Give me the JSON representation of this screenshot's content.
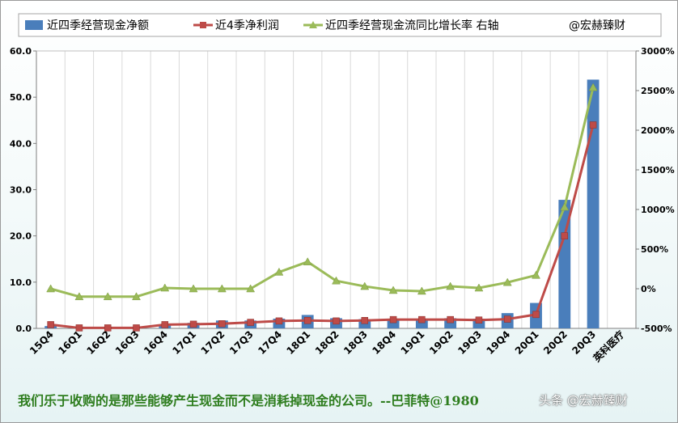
{
  "chart_data": {
    "type": "bar+line",
    "categories": [
      "15Q4",
      "16Q1",
      "16Q2",
      "16Q3",
      "16Q4",
      "17Q1",
      "17Q2",
      "17Q3",
      "17Q4",
      "18Q1",
      "18Q2",
      "18Q3",
      "18Q4",
      "19Q1",
      "19Q2",
      "19Q3",
      "19Q4",
      "20Q1",
      "20Q2",
      "20Q3",
      "英科医疗"
    ],
    "series": [
      {
        "name": "近四季经营现金净额",
        "kind": "bar",
        "axis": "left",
        "color": "#4a7ebb",
        "values": [
          0.5,
          0.3,
          0.3,
          0.3,
          0.8,
          1.2,
          1.7,
          1.7,
          2.1,
          2.9,
          2.2,
          2.0,
          2.1,
          2.1,
          2.2,
          2.1,
          3.3,
          5.5,
          27.8,
          53.8,
          null
        ]
      },
      {
        "name": "近4季净利润",
        "kind": "line",
        "axis": "left",
        "color": "#be4b48",
        "marker": "square",
        "values": [
          0.8,
          0.1,
          0.1,
          0.1,
          0.8,
          0.9,
          1.0,
          1.3,
          1.6,
          1.7,
          1.6,
          1.7,
          1.9,
          1.9,
          1.9,
          1.8,
          2.0,
          3.0,
          20.0,
          44.0,
          null
        ]
      },
      {
        "name": "近四季经营现金流同比增长率 右轴",
        "kind": "line",
        "axis": "right",
        "color": "#9bbb59",
        "marker": "triangle",
        "values": [
          0,
          -100,
          -100,
          -100,
          10,
          0,
          0,
          0,
          210,
          340,
          100,
          30,
          -20,
          -30,
          30,
          10,
          80,
          170,
          1030,
          2540,
          null
        ]
      }
    ],
    "legend_extra": "@宏赫臻财",
    "legend_position": "top",
    "ylim_left": [
      0,
      60
    ],
    "yticks_left": [
      "0.0",
      "10.0",
      "20.0",
      "30.0",
      "40.0",
      "50.0",
      "60.0"
    ],
    "ylim_right": [
      -500,
      3000
    ],
    "yticks_right": [
      "-500%",
      "0%",
      "500%",
      "1000%",
      "1500%",
      "2000%",
      "2500%",
      "3000%"
    ],
    "grid": "vertical",
    "colors": {
      "bar": "#4a7ebb",
      "profit": "#be4b48",
      "growth": "#9bbb59",
      "quote": "#2e7d1e"
    }
  },
  "footer": {
    "quote": "我们乐于收购的是那些能够产生现金而不是消耗掉现金的公司。--巴菲特@1980",
    "watermark": "头条 @宏赫臻财"
  }
}
